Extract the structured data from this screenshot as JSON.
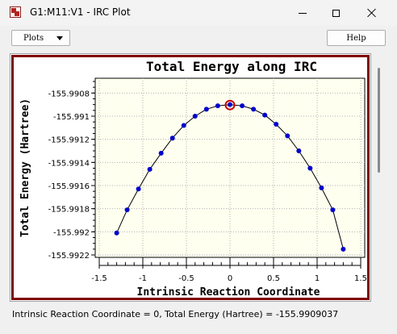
{
  "window": {
    "title": "G1:M11:V1 - IRC Plot",
    "icon": "app-icon"
  },
  "toolbar": {
    "plots_label": "Plots",
    "help_label": "Help"
  },
  "status_text": "Intrinsic Reaction Coordinate = 0, Total Energy (Hartree) = -155.9909037",
  "chart_data": {
    "type": "line",
    "title": "Total Energy along IRC",
    "xlabel": "Intrinsic Reaction Coordinate",
    "ylabel": "Total Energy (Hartree)",
    "xlim": [
      -1.5,
      1.5
    ],
    "ylim": [
      -155.9922,
      -155.9907
    ],
    "x_ticks": [
      -1.5,
      -1,
      -0.5,
      0,
      0.5,
      1,
      1.5
    ],
    "x_tick_labels": [
      "-1.5",
      "-1",
      "-0.5",
      "0",
      "0.5",
      "1",
      "1.5"
    ],
    "y_ticks": [
      -155.9908,
      -155.991,
      -155.9912,
      -155.9914,
      -155.9916,
      -155.9918,
      -155.992,
      -155.9922
    ],
    "y_tick_labels": [
      "-155.9908",
      "-155.991",
      "-155.9912",
      "-155.9914",
      "-155.9916",
      "-155.9918",
      "-155.992",
      "-155.9922"
    ],
    "grid": true,
    "series": [
      {
        "x": [
          -1.3,
          -1.18,
          -1.05,
          -0.92,
          -0.79,
          -0.66,
          -0.53,
          -0.4,
          -0.27,
          -0.14,
          0,
          0.14,
          0.27,
          0.4,
          0.53,
          0.66,
          0.79,
          0.92,
          1.05,
          1.18,
          1.3
        ],
        "y": [
          -155.99201,
          -155.99181,
          -155.99163,
          -155.99146,
          -155.99132,
          -155.99119,
          -155.99108,
          -155.991,
          -155.99094,
          -155.99091,
          -155.9909,
          -155.99091,
          -155.99094,
          -155.99099,
          -155.99107,
          -155.99117,
          -155.9913,
          -155.99145,
          -155.99162,
          -155.99181,
          -155.99215
        ],
        "color": "#0000cc",
        "line_color": "#000000"
      }
    ],
    "selected_point": {
      "x": 0,
      "y": -155.9909037,
      "color": "#cc0000"
    },
    "plot_background": "#fffff0"
  }
}
